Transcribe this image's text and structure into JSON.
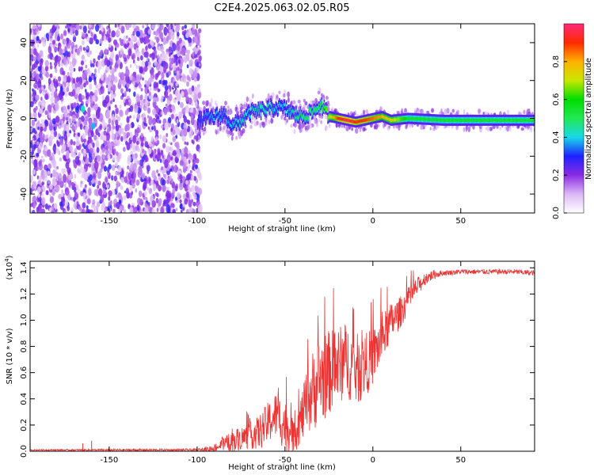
{
  "title": "C2E4.2025.063.02.05.R05",
  "colors": {
    "axis": "#000000",
    "snr_line": "#ee3333",
    "background": "#ffffff"
  },
  "chart_data": [
    {
      "type": "heatmap",
      "name": "spectrogram",
      "xlabel": "Height of straight line (km)",
      "ylabel": "Frequency (Hz)",
      "xlim": [
        -195,
        92
      ],
      "ylim": [
        -50,
        50
      ],
      "xticks": [
        -150,
        -100,
        -50,
        0,
        50
      ],
      "yticks": [
        -40,
        -20,
        0,
        20,
        40
      ],
      "noise_region_x": [
        -195,
        -98
      ],
      "signal_track": {
        "x": [
          -100,
          -95,
          -90,
          -85,
          -80,
          -75,
          -70,
          -65,
          -60,
          -55,
          -50,
          -45,
          -40,
          -35,
          -30,
          -25,
          -20,
          -15,
          -10,
          -5,
          0,
          5,
          10,
          20,
          40,
          60,
          80,
          92
        ],
        "freq": [
          -2,
          0,
          1,
          2,
          -4,
          -1,
          3,
          4,
          5,
          6,
          5,
          2,
          1,
          3,
          7,
          1,
          0,
          -1,
          -2,
          -1,
          0,
          1,
          -1,
          0,
          -1,
          -1,
          -1,
          -1
        ],
        "amplitude": [
          0.3,
          0.35,
          0.4,
          0.35,
          0.4,
          0.45,
          0.4,
          0.45,
          0.45,
          0.4,
          0.4,
          0.45,
          0.5,
          0.5,
          0.55,
          0.7,
          0.9,
          0.95,
          0.9,
          0.9,
          0.85,
          0.8,
          0.75,
          0.55,
          0.55,
          0.55,
          0.55,
          0.55
        ]
      },
      "colorbar": {
        "label": "Normalized spectral amplitude",
        "ticks": [
          "0.0",
          "0.2",
          "0.4",
          "0.6",
          "0.8"
        ],
        "range": [
          0,
          1
        ]
      }
    },
    {
      "type": "line",
      "name": "snr",
      "xlabel": "Height of straight line (km)",
      "ylabel": "SNR (10 * v/v)",
      "scale_label": "(x10",
      "scale_exp": "4",
      "scale_close": ")",
      "xlim": [
        -195,
        92
      ],
      "ylim": [
        0,
        1.45
      ],
      "xticks": [
        -150,
        -100,
        -50,
        0,
        50
      ],
      "yticks": [
        "0.0",
        "0.2",
        "0.4",
        "0.6",
        "0.8",
        "1.0",
        "1.2",
        "1.4"
      ],
      "trend": {
        "x": [
          -195,
          -100,
          -92,
          -85,
          -75,
          -65,
          -55,
          -50,
          -45,
          -40,
          -35,
          -30,
          -25,
          -20,
          -15,
          -10,
          -5,
          0,
          5,
          10,
          15,
          20,
          25,
          30,
          35,
          40,
          50,
          60,
          70,
          80,
          92
        ],
        "y": [
          0.01,
          0.01,
          0.02,
          0.05,
          0.1,
          0.14,
          0.28,
          0.2,
          0.1,
          0.28,
          0.45,
          0.55,
          0.6,
          0.65,
          0.7,
          0.62,
          0.65,
          0.72,
          0.85,
          0.98,
          1.05,
          1.15,
          1.25,
          1.32,
          1.35,
          1.36,
          1.37,
          1.37,
          1.37,
          1.37,
          1.36
        ]
      },
      "noise": {
        "x": [
          -195,
          -100,
          -90,
          -80,
          -70,
          -60,
          -50,
          -45,
          -40,
          -35,
          -30,
          -20,
          -10,
          0,
          10,
          20,
          30,
          40,
          92
        ],
        "amp": [
          0.005,
          0.01,
          0.03,
          0.08,
          0.1,
          0.16,
          0.2,
          0.12,
          0.2,
          0.3,
          0.35,
          0.3,
          0.28,
          0.22,
          0.15,
          0.1,
          0.05,
          0.02,
          0.02
        ]
      },
      "spikes": [
        {
          "x": -165,
          "y": 0.06
        },
        {
          "x": -160,
          "y": 0.08
        }
      ]
    }
  ]
}
